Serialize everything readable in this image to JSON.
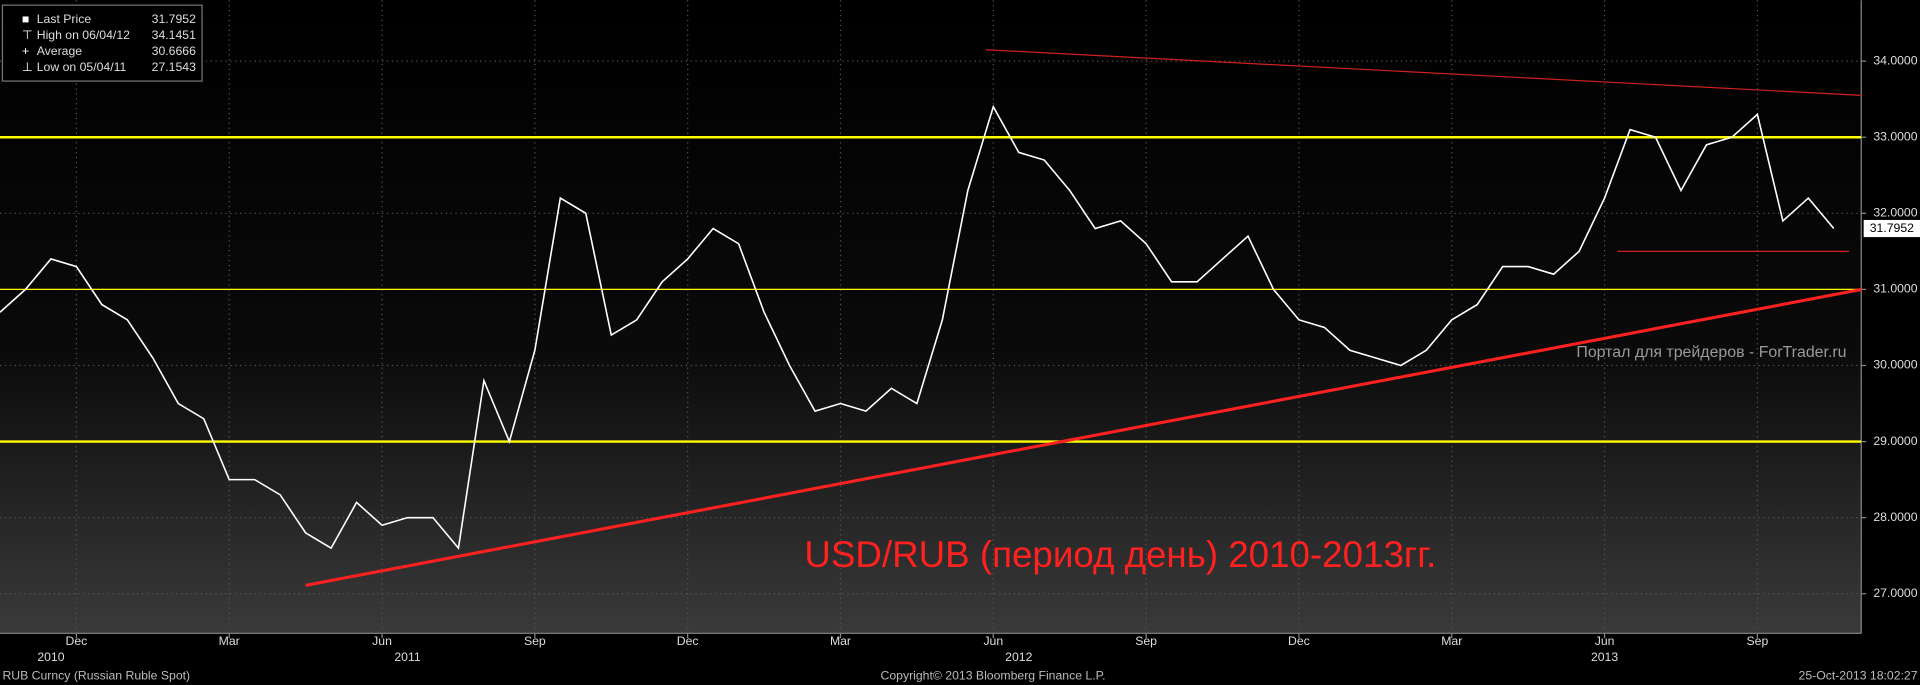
{
  "chart_data": {
    "type": "line",
    "annotation": "USD/RUB (период день) 2010-2013гг.",
    "watermark": "Портал для трейдеров - ForTrader.ru",
    "footer": {
      "left": "RUB Curncy (Russian Ruble Spot)",
      "center": "Copyright© 2013 Bloomberg Finance L.P.",
      "right": "25-Oct-2013 18:02:27"
    },
    "legend": [
      {
        "label": "Last Price",
        "value": 31.7952
      },
      {
        "label": "High on 06/04/12",
        "value": 34.1451
      },
      {
        "label": "Average",
        "value": 30.6666
      },
      {
        "label": "Low on 05/04/11",
        "value": 27.1543
      }
    ],
    "categories": [
      null,
      null,
      null,
      "Dec",
      null,
      null,
      null,
      null,
      null,
      "Mar",
      null,
      null,
      null,
      null,
      null,
      "Jun",
      null,
      null,
      null,
      null,
      null,
      "Sep",
      null,
      null,
      null,
      null,
      null,
      "Dec",
      null,
      null,
      null,
      null,
      null,
      "Mar",
      null,
      null,
      null,
      null,
      null,
      "Jun",
      null,
      null,
      null,
      null,
      null,
      "Sep",
      null,
      null,
      null,
      null,
      null,
      "Dec",
      null,
      null,
      null,
      null,
      null,
      "Mar",
      null,
      null,
      null,
      null,
      null,
      "Jun",
      null,
      null,
      null,
      null,
      null,
      "Sep",
      null,
      null,
      null
    ],
    "years": [
      null,
      null,
      "2010",
      null,
      null,
      null,
      null,
      null,
      null,
      null,
      null,
      null,
      null,
      null,
      null,
      null,
      "2011",
      null,
      null,
      null,
      null,
      null,
      null,
      null,
      null,
      null,
      null,
      null,
      null,
      null,
      null,
      null,
      null,
      null,
      null,
      null,
      null,
      null,
      null,
      null,
      "2012",
      null,
      null,
      null,
      null,
      null,
      null,
      null,
      null,
      null,
      null,
      null,
      null,
      null,
      null,
      null,
      null,
      null,
      null,
      null,
      null,
      null,
      null,
      "2013",
      null,
      null,
      null,
      null,
      null,
      null,
      null,
      null,
      null
    ],
    "series": [
      {
        "name": "Last Price",
        "color": "#ffffff",
        "values": [
          30.7,
          31.0,
          31.4,
          31.3,
          30.8,
          30.6,
          30.1,
          29.5,
          29.3,
          28.5,
          28.5,
          28.3,
          27.8,
          27.6,
          28.2,
          27.9,
          28.0,
          28.0,
          27.6,
          29.8,
          29.0,
          30.2,
          32.2,
          32.0,
          30.4,
          30.6,
          31.1,
          31.4,
          31.8,
          31.6,
          30.7,
          30.0,
          29.4,
          29.5,
          29.4,
          29.7,
          29.5,
          30.6,
          32.3,
          33.4,
          32.8,
          32.7,
          32.3,
          31.8,
          31.9,
          31.6,
          31.1,
          31.1,
          31.4,
          31.7,
          31.0,
          30.6,
          30.5,
          30.2,
          30.1,
          30.0,
          30.2,
          30.6,
          30.8,
          31.3,
          31.3,
          31.2,
          31.5,
          32.2,
          33.1,
          33.0,
          32.3,
          32.9,
          33.0,
          33.3,
          31.9,
          32.2,
          31.8
        ]
      }
    ],
    "ylim": [
      26.48,
      34.8
    ],
    "yticks": [
      {
        "value": 27,
        "label": "27.0000"
      },
      {
        "value": 28,
        "label": "28.0000"
      },
      {
        "value": 29,
        "label": "29.0000"
      },
      {
        "value": 30,
        "label": "30.0000"
      },
      {
        "value": 31,
        "label": "31.0000"
      },
      {
        "value": 32,
        "label": "32.0000"
      },
      {
        "value": 33,
        "label": "33.0000"
      },
      {
        "value": 34,
        "label": "34.0000"
      }
    ],
    "grid": true,
    "hlines": [
      {
        "value": 33,
        "color": "#ffff00",
        "width": 2
      },
      {
        "value": 31,
        "color": "#ffff00",
        "width": 1
      },
      {
        "value": 29,
        "color": "#ffff00",
        "width": 2
      }
    ],
    "trendlines": [
      {
        "from": [
          12.0,
          27.11
        ],
        "to": [
          73.1,
          31.0
        ],
        "color": "#ff2020",
        "width": 2.5
      },
      {
        "from": [
          38.7,
          34.15
        ],
        "to": [
          73.1,
          33.55
        ],
        "color": "#d02020",
        "width": 1
      },
      {
        "from": [
          63.5,
          31.5
        ],
        "to": [
          72.6,
          31.5
        ],
        "color": "#d02020",
        "width": 1
      }
    ]
  }
}
